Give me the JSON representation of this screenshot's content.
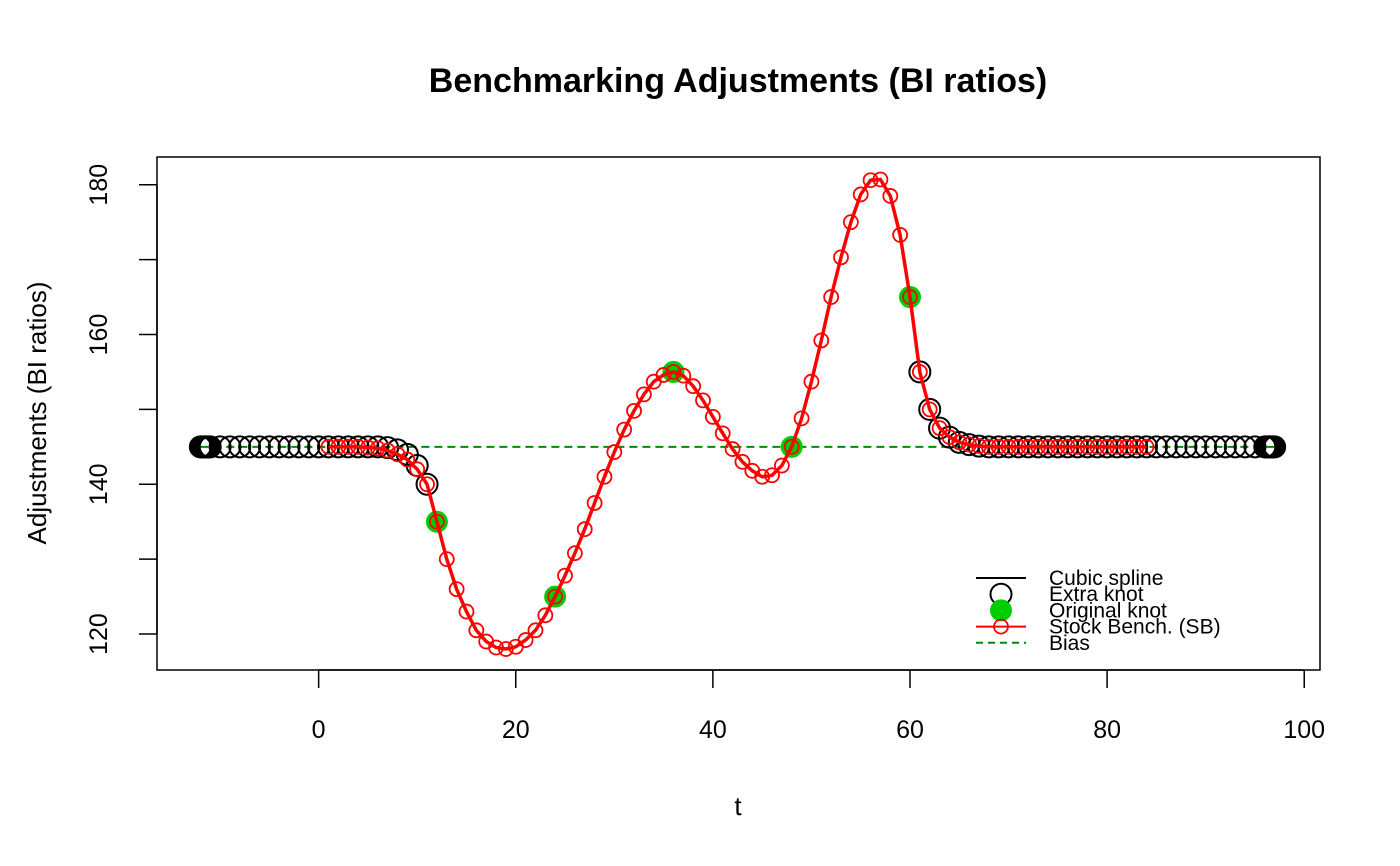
{
  "chart_data": {
    "type": "line",
    "title": "Benchmarking Adjustments (BI ratios)",
    "xlabel": "t",
    "ylabel": "Adjustments (BI ratios)",
    "xlim": [
      -16.4,
      101.6
    ],
    "ylim": [
      115.2,
      183.7
    ],
    "xticks": [
      0,
      20,
      40,
      60,
      80,
      100
    ],
    "yticks": [
      120,
      140,
      160,
      180
    ],
    "grid": false,
    "legend_position": "bottom-right",
    "legend": [
      {
        "label": "Cubic spline",
        "kind": "line",
        "color": "#000000"
      },
      {
        "label": "Extra knot",
        "kind": "open-circle",
        "color": "#000000"
      },
      {
        "label": "Original knot",
        "kind": "filled-circle",
        "color": "#00CD00"
      },
      {
        "label": "Stock Bench. (SB)",
        "kind": "line-circle",
        "color": "#FF0000"
      },
      {
        "label": "Bias",
        "kind": "dashed-line",
        "color": "#008B00"
      }
    ],
    "bias": 145,
    "extra_knots": {
      "x": [
        -12.0,
        -11.9,
        -11.8,
        -11.7,
        -11.6,
        -11.5,
        -11.4,
        -11.3,
        -11.2,
        -11.1,
        -11.0,
        -10,
        -9,
        -8,
        -7,
        -6,
        -5,
        -4,
        -3,
        -2,
        -1,
        0,
        1,
        2,
        3,
        4,
        5,
        6,
        7,
        8,
        9,
        10,
        11,
        61,
        62,
        63,
        64,
        65,
        66,
        67,
        68,
        69,
        70,
        71,
        72,
        73,
        74,
        75,
        76,
        77,
        78,
        79,
        80,
        81,
        82,
        83,
        84,
        85,
        86,
        87,
        88,
        89,
        90,
        91,
        92,
        93,
        94,
        95,
        96.0,
        96.1,
        96.2,
        96.3,
        96.4,
        96.5,
        96.6,
        96.7,
        96.8,
        96.9,
        97.0
      ],
      "y": [
        145,
        145,
        145,
        145,
        145,
        145,
        145,
        145,
        145,
        145,
        145,
        145,
        145,
        145,
        145,
        145,
        145,
        145,
        145,
        145,
        145,
        145,
        145,
        145,
        145,
        145,
        145,
        145,
        144.9,
        144.6,
        144.0,
        142.5,
        140.0,
        155.0,
        150.0,
        147.5,
        146.3,
        145.6,
        145.3,
        145.1,
        145.0,
        145,
        145,
        145,
        145,
        145,
        145,
        145,
        145,
        145,
        145,
        145,
        145,
        145,
        145,
        145,
        145,
        145,
        145,
        145,
        145,
        145,
        145,
        145,
        145,
        145,
        145,
        145,
        145,
        145,
        145,
        145,
        145,
        145,
        145,
        145,
        145,
        145,
        145
      ]
    },
    "original_knots": {
      "x": [
        12,
        24,
        36,
        48,
        60
      ],
      "y": [
        135,
        125,
        155,
        145,
        165
      ]
    },
    "series": [
      {
        "name": "Stock Bench. (SB)",
        "x": [
          1,
          2,
          3,
          4,
          5,
          6,
          7,
          8,
          9,
          10,
          11,
          12,
          13,
          14,
          15,
          16,
          17,
          18,
          19,
          20,
          21,
          22,
          23,
          24,
          25,
          26,
          27,
          28,
          29,
          30,
          31,
          32,
          33,
          34,
          35,
          36,
          37,
          38,
          39,
          40,
          41,
          42,
          43,
          44,
          45,
          46,
          47,
          48,
          49,
          50,
          51,
          52,
          53,
          54,
          55,
          56,
          57,
          58,
          59,
          60,
          61,
          62,
          63,
          64,
          65,
          66,
          67,
          68,
          69,
          70,
          71,
          72,
          73,
          74,
          75,
          76,
          77,
          78,
          79,
          80,
          81,
          82,
          83,
          84
        ],
        "y": [
          145,
          145,
          145,
          145,
          144.9,
          144.8,
          144.5,
          144.0,
          143.3,
          142.0,
          140.0,
          135.0,
          130.0,
          126.0,
          123.0,
          120.5,
          119.0,
          118.2,
          118.0,
          118.3,
          119.2,
          120.5,
          122.5,
          125.0,
          127.8,
          130.8,
          134.0,
          137.5,
          141.0,
          144.3,
          147.3,
          149.8,
          152.0,
          153.7,
          154.6,
          155.0,
          154.5,
          153.1,
          151.2,
          149.0,
          146.8,
          144.7,
          143.0,
          141.8,
          141.0,
          141.2,
          142.5,
          145.0,
          148.8,
          153.7,
          159.2,
          165.0,
          170.3,
          175.0,
          178.7,
          180.6,
          180.7,
          178.5,
          173.3,
          165.0,
          155.0,
          150.0,
          147.5,
          146.3,
          145.6,
          145.3,
          145.1,
          145.0,
          145,
          145,
          145,
          145,
          145,
          145,
          145,
          145,
          145,
          145,
          145,
          145,
          145,
          145,
          145,
          145
        ]
      }
    ]
  }
}
